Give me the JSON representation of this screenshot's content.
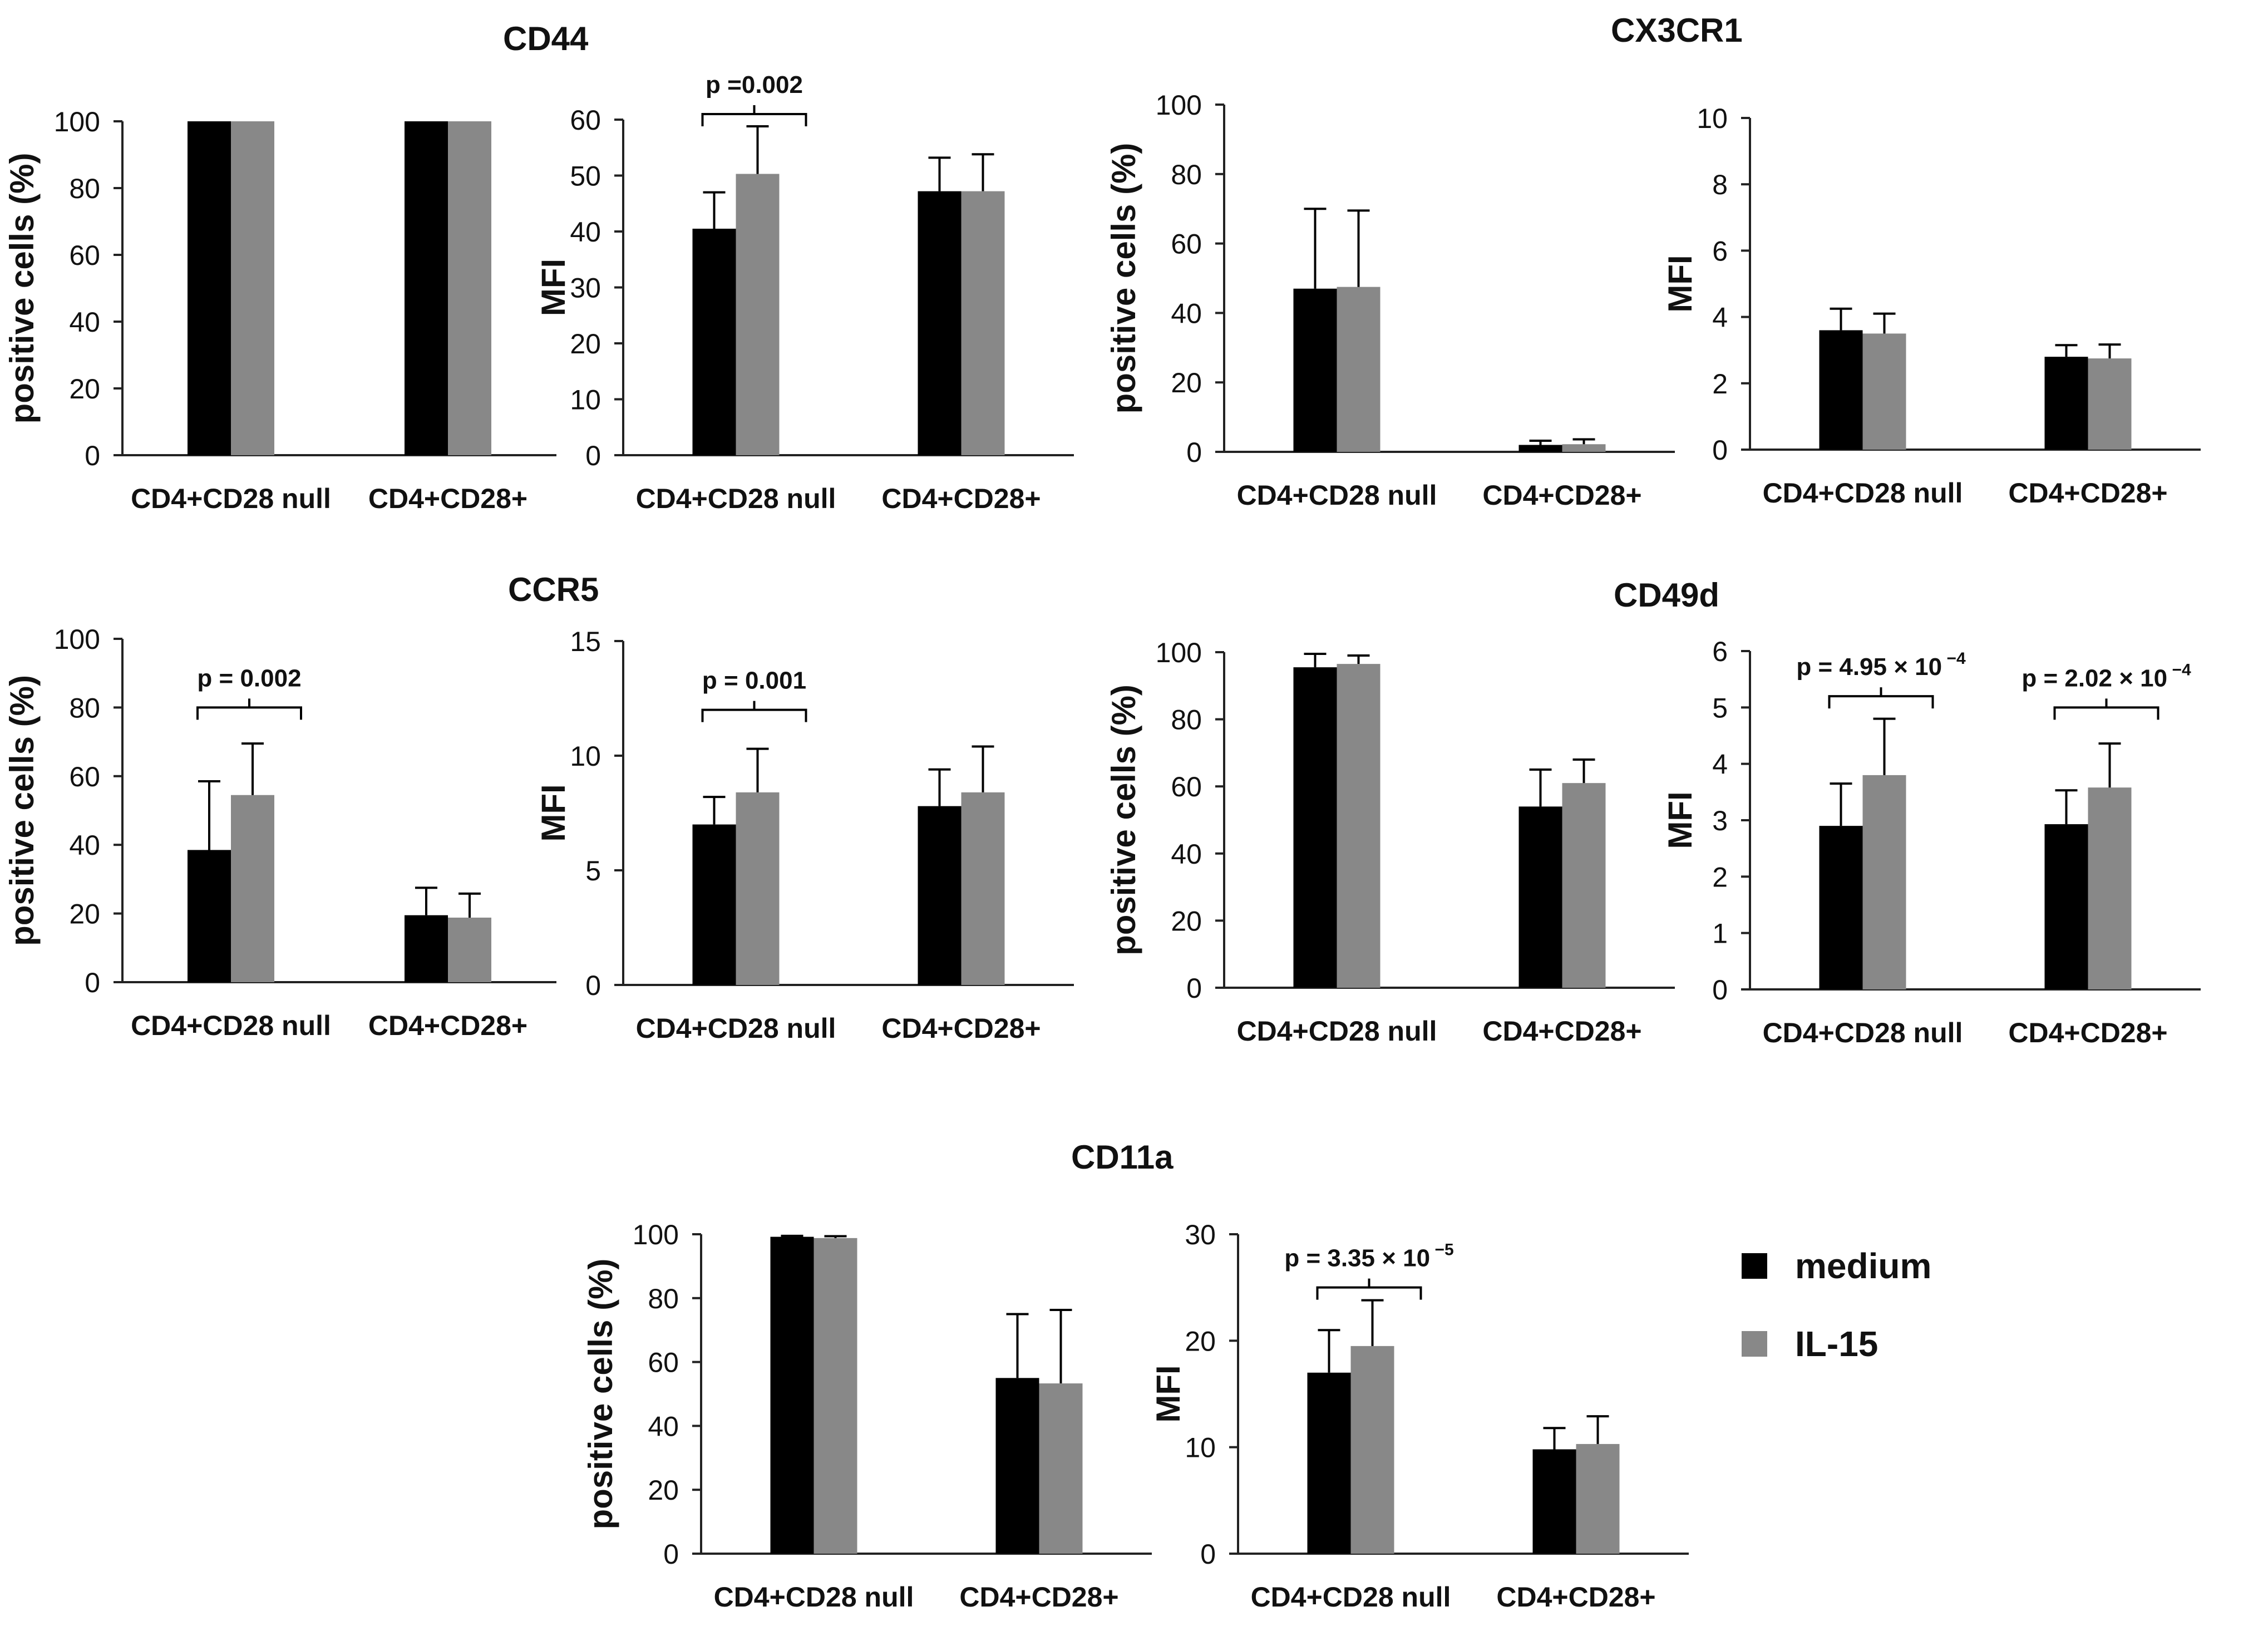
{
  "colors": {
    "medium": "#000000",
    "il15": "#888888",
    "axis": "#222222"
  },
  "legend": {
    "items": [
      {
        "label": "medium",
        "color": "#000000"
      },
      {
        "label": "IL-15",
        "color": "#888888"
      }
    ]
  },
  "groups": [
    {
      "title": "CD44"
    },
    {
      "title": "CX3CR1"
    },
    {
      "title": "CCR5"
    },
    {
      "title": "CD49d"
    },
    {
      "title": "CD11a"
    }
  ],
  "chart_data": [
    {
      "id": "cd44-pct",
      "type": "bar",
      "group": "CD44",
      "ylabel": "positive cells (%)",
      "ylim": [
        0,
        100
      ],
      "yticks": [
        0,
        20,
        40,
        60,
        80,
        100
      ],
      "categories": [
        "CD4+CD28 null",
        "CD4+CD28+"
      ],
      "series": [
        {
          "name": "medium",
          "values": [
            100,
            100
          ],
          "errors": [
            0,
            0
          ]
        },
        {
          "name": "IL-15",
          "values": [
            100,
            100
          ],
          "errors": [
            0,
            0
          ]
        }
      ],
      "annotations": []
    },
    {
      "id": "cd44-mfi",
      "type": "bar",
      "group": "CD44",
      "ylabel": "MFI",
      "ylim": [
        0,
        60
      ],
      "yticks": [
        0,
        10,
        20,
        30,
        40,
        50,
        60
      ],
      "categories": [
        "CD4+CD28 null",
        "CD4+CD28+"
      ],
      "series": [
        {
          "name": "medium",
          "values": [
            40.5,
            47.2
          ],
          "errors": [
            6.5,
            6
          ]
        },
        {
          "name": "IL-15",
          "values": [
            50.3,
            47.2
          ],
          "errors": [
            8.5,
            6.6
          ]
        }
      ],
      "annotations": [
        {
          "category": 0,
          "text": "p =0.002",
          "y": 61
        }
      ]
    },
    {
      "id": "cx3cr1-pct",
      "type": "bar",
      "group": "CX3CR1",
      "ylabel": "positive cells (%)",
      "ylim": [
        0,
        100
      ],
      "yticks": [
        0,
        20,
        40,
        60,
        80,
        100
      ],
      "categories": [
        "CD4+CD28 null",
        "CD4+CD28+"
      ],
      "series": [
        {
          "name": "medium",
          "values": [
            47,
            2
          ],
          "errors": [
            23,
            1.2
          ]
        },
        {
          "name": "IL-15",
          "values": [
            47.5,
            2.2
          ],
          "errors": [
            22,
            1.4
          ]
        }
      ],
      "annotations": []
    },
    {
      "id": "cx3cr1-mfi",
      "type": "bar",
      "group": "CX3CR1",
      "ylabel": "MFI",
      "ylim": [
        0,
        10
      ],
      "yticks": [
        0,
        2,
        4,
        6,
        8,
        10
      ],
      "categories": [
        "CD4+CD28 null",
        "CD4+CD28+"
      ],
      "series": [
        {
          "name": "medium",
          "values": [
            3.6,
            2.8
          ],
          "errors": [
            0.65,
            0.35
          ]
        },
        {
          "name": "IL-15",
          "values": [
            3.5,
            2.75
          ],
          "errors": [
            0.6,
            0.42
          ]
        }
      ],
      "annotations": []
    },
    {
      "id": "ccr5-pct",
      "type": "bar",
      "group": "CCR5",
      "ylabel": "positive cells (%)",
      "ylim": [
        0,
        100
      ],
      "yticks": [
        0,
        20,
        40,
        60,
        80,
        100
      ],
      "categories": [
        "CD4+CD28 null",
        "CD4+CD28+"
      ],
      "series": [
        {
          "name": "medium",
          "values": [
            38.5,
            19.5
          ],
          "errors": [
            20,
            8
          ]
        },
        {
          "name": "IL-15",
          "values": [
            54.5,
            18.8
          ],
          "errors": [
            15,
            7
          ]
        }
      ],
      "annotations": [
        {
          "category": 0,
          "text": "p = 0.002",
          "y": 80
        }
      ]
    },
    {
      "id": "ccr5-mfi",
      "type": "bar",
      "group": "CCR5",
      "ylabel": "MFI",
      "ylim": [
        0,
        15
      ],
      "yticks": [
        0,
        5,
        10,
        15
      ],
      "categories": [
        "CD4+CD28 null",
        "CD4+CD28+"
      ],
      "series": [
        {
          "name": "medium",
          "values": [
            7,
            7.8
          ],
          "errors": [
            1.2,
            1.6
          ]
        },
        {
          "name": "IL-15",
          "values": [
            8.4,
            8.4
          ],
          "errors": [
            1.9,
            2.0
          ]
        }
      ],
      "annotations": [
        {
          "category": 0,
          "text": "p = 0.001",
          "y": 12
        }
      ]
    },
    {
      "id": "cd49d-pct",
      "type": "bar",
      "group": "CD49d",
      "ylabel": "positive cells (%)",
      "ylim": [
        0,
        100
      ],
      "yticks": [
        0,
        20,
        40,
        60,
        80,
        100
      ],
      "categories": [
        "CD4+CD28 null",
        "CD4+CD28+"
      ],
      "series": [
        {
          "name": "medium",
          "values": [
            95.5,
            54
          ],
          "errors": [
            4,
            11
          ]
        },
        {
          "name": "IL-15",
          "values": [
            96.5,
            61
          ],
          "errors": [
            2.5,
            7
          ]
        }
      ],
      "annotations": []
    },
    {
      "id": "cd49d-mfi",
      "type": "bar",
      "group": "CD49d",
      "ylabel": "MFI",
      "ylim": [
        0,
        6
      ],
      "yticks": [
        0,
        1,
        2,
        3,
        4,
        5,
        6
      ],
      "categories": [
        "CD4+CD28 null",
        "CD4+CD28+"
      ],
      "series": [
        {
          "name": "medium",
          "values": [
            2.9,
            2.93
          ],
          "errors": [
            0.75,
            0.6
          ]
        },
        {
          "name": "IL-15",
          "values": [
            3.8,
            3.58
          ],
          "errors": [
            1.0,
            0.78
          ]
        }
      ],
      "annotations": [
        {
          "category": 0,
          "text": "p = 4.95 × 10",
          "sup": "−4",
          "y": 5.2
        },
        {
          "category": 1,
          "text": "p = 2.02 × 10",
          "sup": "−4",
          "y": 5.0
        }
      ]
    },
    {
      "id": "cd11a-pct",
      "type": "bar",
      "group": "CD11a",
      "ylabel": "positive cells (%)",
      "ylim": [
        0,
        100
      ],
      "yticks": [
        0,
        20,
        40,
        60,
        80,
        100
      ],
      "categories": [
        "CD4+CD28 null",
        "CD4+CD28+"
      ],
      "series": [
        {
          "name": "medium",
          "values": [
            99.2,
            55
          ],
          "errors": [
            0.3,
            20
          ]
        },
        {
          "name": "IL-15",
          "values": [
            98.8,
            53.3
          ],
          "errors": [
            0.6,
            23
          ]
        }
      ],
      "annotations": []
    },
    {
      "id": "cd11a-mfi",
      "type": "bar",
      "group": "CD11a",
      "ylabel": "MFI",
      "ylim": [
        0,
        30
      ],
      "yticks": [
        0,
        10,
        20,
        30
      ],
      "categories": [
        "CD4+CD28 null",
        "CD4+CD28+"
      ],
      "series": [
        {
          "name": "medium",
          "values": [
            17,
            9.8
          ],
          "errors": [
            4,
            2
          ]
        },
        {
          "name": "IL-15",
          "values": [
            19.5,
            10.3
          ],
          "errors": [
            4.3,
            2.6
          ]
        }
      ],
      "annotations": [
        {
          "category": 0,
          "text": "p = 3.35 × 10",
          "sup": "−5",
          "y": 25
        }
      ]
    }
  ]
}
